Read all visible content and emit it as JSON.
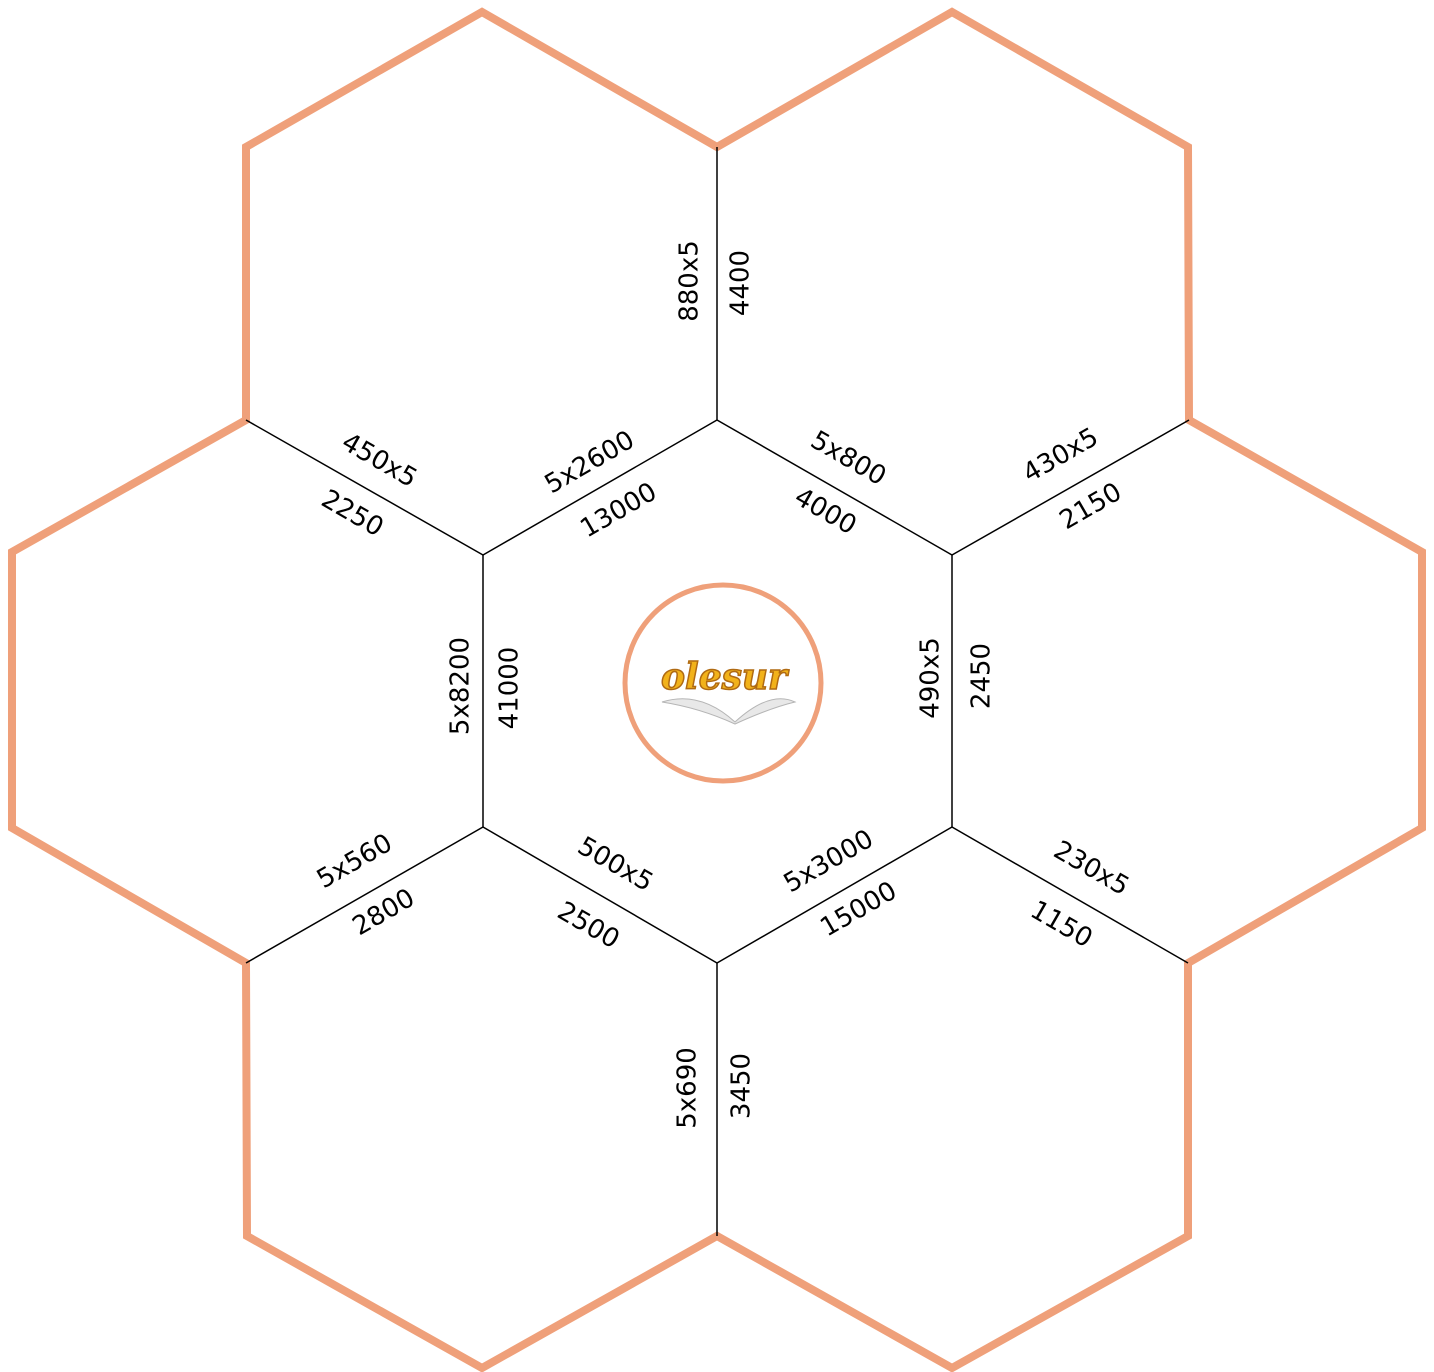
{
  "colors": {
    "hex_outline": "#EFA07A",
    "circle_outline": "#EFA07A",
    "edge_line": "#000000",
    "logo_fill": "#F2B21A",
    "logo_stroke": "#B06A12"
  },
  "logo": {
    "text": "olesur"
  },
  "edges": [
    {
      "id": "top",
      "line1": "880x5",
      "line2": "4400"
    },
    {
      "id": "upper-left-outer",
      "line1": "450x5",
      "line2": "2250"
    },
    {
      "id": "upper-left-inner",
      "line1": "5x2600",
      "line2": "13000"
    },
    {
      "id": "upper-right-inner",
      "line1": "5x800",
      "line2": "4000"
    },
    {
      "id": "upper-right-outer",
      "line1": "430x5",
      "line2": "2150"
    },
    {
      "id": "left",
      "line1": "5x8200",
      "line2": "41000"
    },
    {
      "id": "right",
      "line1": "490x5",
      "line2": "2450"
    },
    {
      "id": "lower-left-outer",
      "line1": "5x560",
      "line2": "2800"
    },
    {
      "id": "lower-left-inner",
      "line1": "500x5",
      "line2": "2500"
    },
    {
      "id": "lower-right-inner",
      "line1": "5x3000",
      "line2": "15000"
    },
    {
      "id": "lower-right-outer",
      "line1": "230x5",
      "line2": "1150"
    },
    {
      "id": "bottom",
      "line1": "5x690",
      "line2": "3450"
    }
  ]
}
